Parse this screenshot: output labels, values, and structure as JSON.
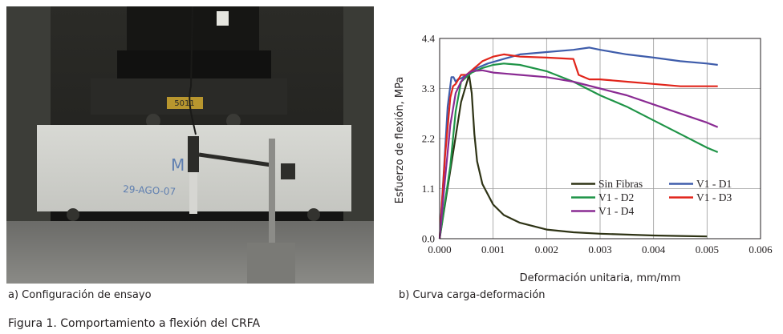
{
  "captions": {
    "a": "a) Configuración de ensayo",
    "b": "b) Curva carga-deformación",
    "figure": "Figura 1. Comportamiento a flexión del CRFA"
  },
  "photo": {
    "specimen_writing_1": "M",
    "specimen_writing_2": "29-AGO-07",
    "plate_label": "5011"
  },
  "chart_data": {
    "type": "line",
    "xlabel": "Deformación unitaria, mm/mm",
    "ylabel": "Esfuerzo de flexión, MPa",
    "xlim": [
      0,
      0.006
    ],
    "ylim": [
      0,
      4.4
    ],
    "x_ticks": [
      "0.000",
      "0.001",
      "0.002",
      "0.003",
      "0.004",
      "0.005",
      "0.006"
    ],
    "y_ticks": [
      "0.0",
      "1.1",
      "2.2",
      "3.3",
      "4.4"
    ],
    "grid": true,
    "legend_position": "lower-right",
    "series": [
      {
        "name": "Sin Fibras",
        "color": "#2e3315",
        "x": [
          0,
          0.0002,
          0.0004,
          0.00055,
          0.0006,
          0.00065,
          0.0007,
          0.0008,
          0.001,
          0.0012,
          0.0015,
          0.002,
          0.0025,
          0.003,
          0.0035,
          0.004,
          0.0045,
          0.005
        ],
        "y": [
          0,
          1.5,
          3.0,
          3.6,
          3.2,
          2.3,
          1.7,
          1.2,
          0.75,
          0.52,
          0.35,
          0.2,
          0.14,
          0.11,
          0.09,
          0.07,
          0.06,
          0.05
        ]
      },
      {
        "name": "V1 - D1",
        "color": "#3f5dab",
        "x": [
          0,
          8e-05,
          0.00015,
          0.00022,
          0.00026,
          0.0003,
          0.00034,
          0.0004,
          0.0005,
          0.0007,
          0.0009,
          0.0012,
          0.0015,
          0.002,
          0.0025,
          0.0028,
          0.003,
          0.0035,
          0.004,
          0.0045,
          0.005,
          0.0052
        ],
        "y": [
          0,
          1.5,
          2.9,
          3.55,
          3.55,
          3.45,
          3.5,
          3.52,
          3.6,
          3.75,
          3.85,
          3.95,
          4.05,
          4.1,
          4.15,
          4.2,
          4.15,
          4.05,
          3.98,
          3.9,
          3.85,
          3.82
        ]
      },
      {
        "name": "V1 - D2",
        "color": "#1f9447",
        "x": [
          0,
          0.0002,
          0.0003,
          0.0004,
          0.0005,
          0.0006,
          0.0008,
          0.001,
          0.0012,
          0.0015,
          0.002,
          0.0025,
          0.003,
          0.0035,
          0.004,
          0.0045,
          0.005,
          0.0052
        ],
        "y": [
          0,
          1.6,
          2.8,
          3.45,
          3.55,
          3.65,
          3.75,
          3.82,
          3.85,
          3.82,
          3.68,
          3.45,
          3.15,
          2.9,
          2.6,
          2.3,
          2.0,
          1.9
        ]
      },
      {
        "name": "V1 - D3",
        "color": "#e1251b",
        "x": [
          0,
          0.0001,
          0.0002,
          0.00025,
          0.0003,
          0.0004,
          0.0005,
          0.0006,
          0.0008,
          0.001,
          0.0012,
          0.0015,
          0.002,
          0.0025,
          0.0026,
          0.0028,
          0.003,
          0.0035,
          0.004,
          0.0045,
          0.005,
          0.0052
        ],
        "y": [
          0,
          1.8,
          3.1,
          3.35,
          3.4,
          3.6,
          3.6,
          3.7,
          3.9,
          4.0,
          4.05,
          4.0,
          3.98,
          3.95,
          3.6,
          3.5,
          3.5,
          3.45,
          3.4,
          3.35,
          3.35,
          3.35
        ]
      },
      {
        "name": "V1 - D4",
        "color": "#8a2b93",
        "x": [
          0,
          0.0001,
          0.0002,
          0.0003,
          0.0004,
          0.0005,
          0.0006,
          0.0008,
          0.001,
          0.0015,
          0.002,
          0.0025,
          0.003,
          0.0035,
          0.004,
          0.0045,
          0.005,
          0.0052
        ],
        "y": [
          0,
          1.3,
          2.5,
          3.2,
          3.45,
          3.6,
          3.68,
          3.7,
          3.65,
          3.6,
          3.55,
          3.45,
          3.3,
          3.15,
          2.95,
          2.75,
          2.55,
          2.45
        ]
      }
    ]
  }
}
